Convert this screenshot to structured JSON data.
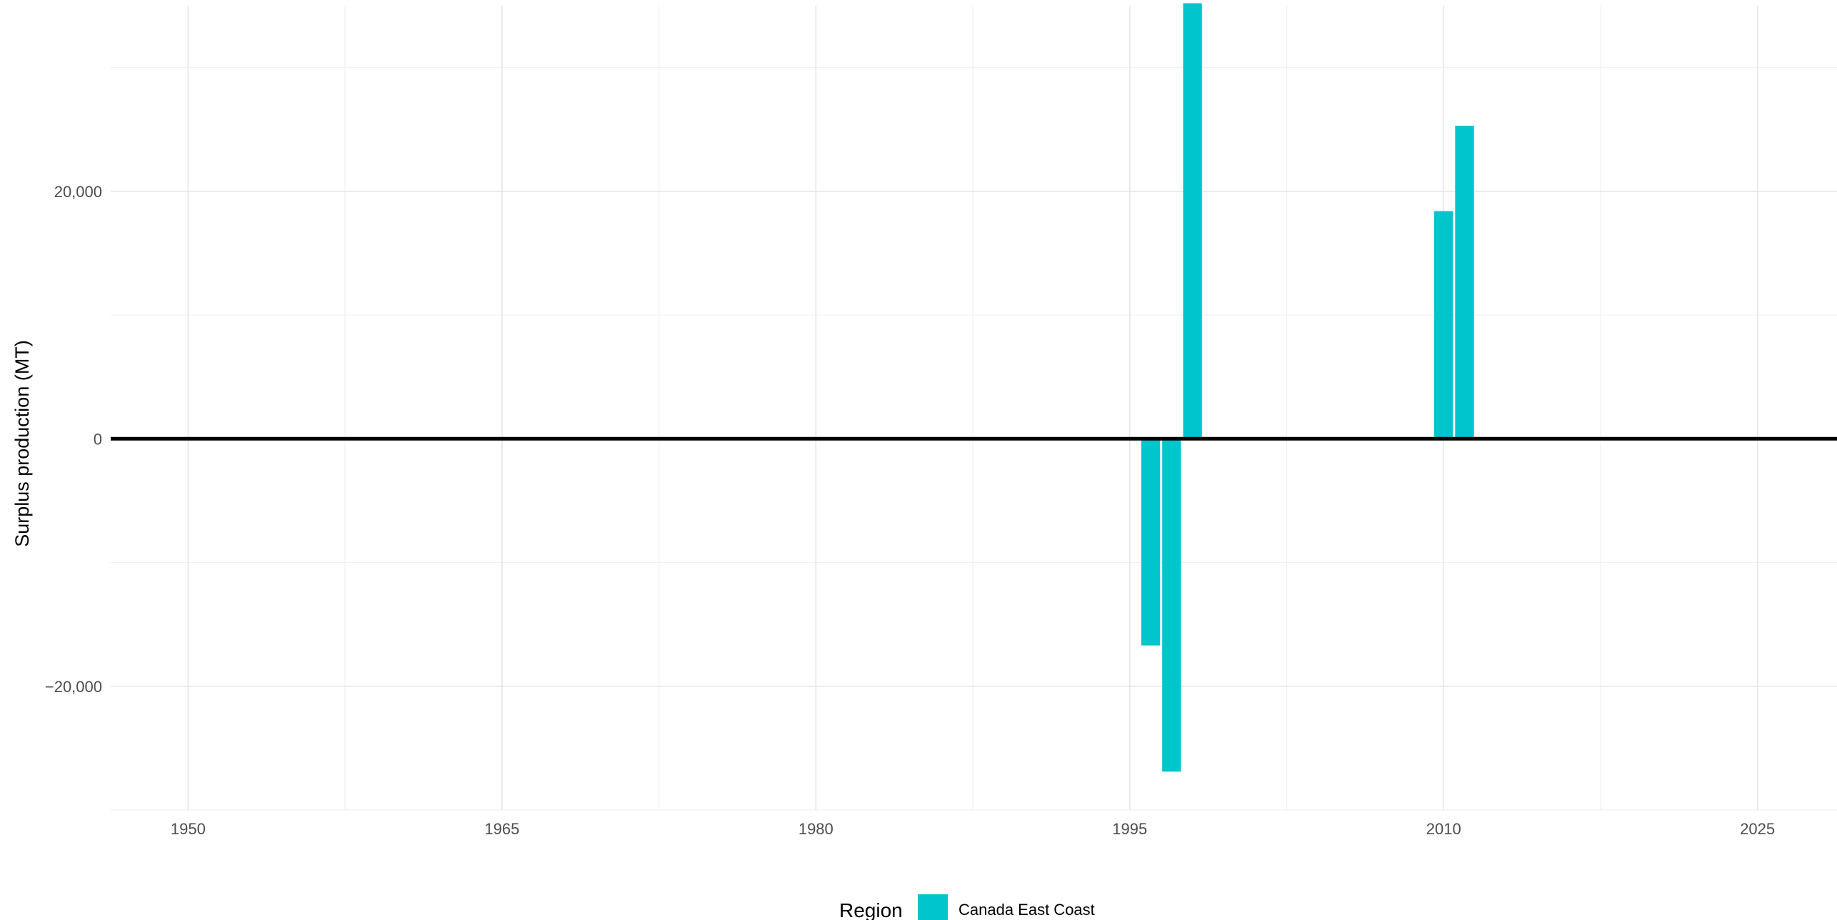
{
  "chart_data": {
    "type": "bar",
    "title": "",
    "xlabel": "",
    "ylabel": "Surplus production (MT)",
    "xlim": [
      1946.3,
      2028.8
    ],
    "ylim": [
      -30000,
      35000
    ],
    "x_ticks": [
      1950,
      1965,
      1980,
      1995,
      2010,
      2025
    ],
    "x_tick_labels": [
      "1950",
      "1965",
      "1980",
      "1995",
      "2010",
      "2025"
    ],
    "y_ticks": [
      -20000,
      0,
      20000
    ],
    "y_tick_labels": [
      "−20,000",
      "0",
      "20,000"
    ],
    "grid": true,
    "legend": {
      "title": "Region",
      "position": "bottom"
    },
    "series": [
      {
        "name": "Canada East Coast",
        "color": "#00c5cd",
        "x": [
          1996,
          1997,
          1998,
          2010,
          2011
        ],
        "values": [
          -16700,
          -26900,
          35200,
          18400,
          25300
        ]
      }
    ]
  }
}
